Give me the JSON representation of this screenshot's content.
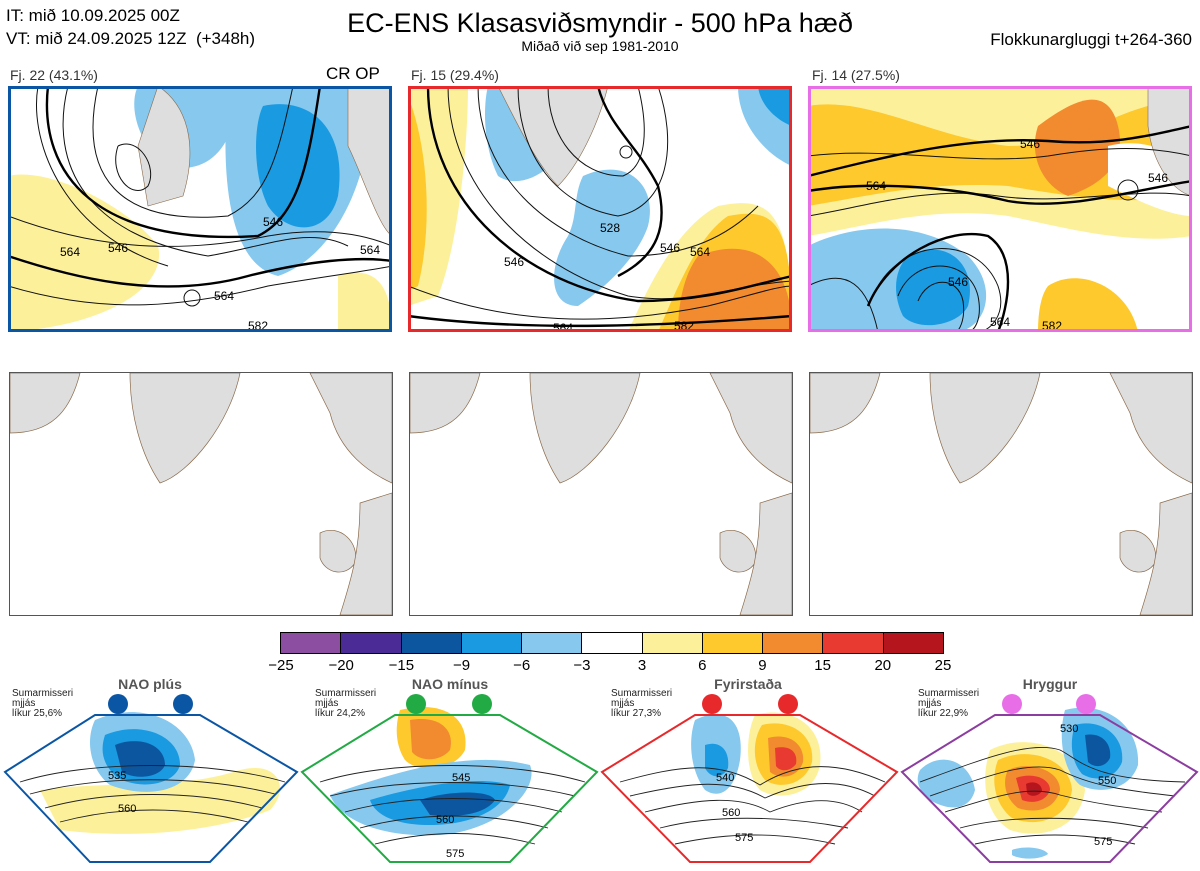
{
  "header": {
    "left_line1": "IT: mið 10.09.2025 00Z",
    "left_line2": "VT: mið 24.09.2025 12Z  (+348h)",
    "title": "EC-ENS Klasasviðsmyndir - 500 hPa hæð",
    "subtitle": "Miðað við sep 1981-2010",
    "right": "Flokkunargluggi t+264-360"
  },
  "panels": [
    {
      "label": "Fj. 22 (43.1%)",
      "extra": "CR OP",
      "border_color": "#0b56a4",
      "contour_labels": [
        "546",
        "546",
        "564",
        "564",
        "564",
        "582"
      ]
    },
    {
      "label": "Fj. 15 (29.4%)",
      "extra": "",
      "border_color": "#e8292b",
      "contour_labels": [
        "528",
        "546",
        "546",
        "564",
        "564",
        "582"
      ]
    },
    {
      "label": "Fj. 14 (27.5%)",
      "extra": "",
      "border_color": "#e86ee8",
      "contour_labels": [
        "546",
        "564",
        "546",
        "546",
        "564",
        "582"
      ]
    }
  ],
  "colorbar": {
    "ticks": [
      "−25",
      "−20",
      "−15",
      "−9",
      "−6",
      "−3",
      "3",
      "6",
      "9",
      "15",
      "20",
      "25"
    ],
    "colors": [
      "#8c4ea0",
      "#4b2b96",
      "#0c56a0",
      "#1a9ae0",
      "#86c8ee",
      "#ffffff",
      "#fdf09a",
      "#fdc92d",
      "#f28a30",
      "#e83a30",
      "#b5151c"
    ]
  },
  "regimes": [
    {
      "name": "NAO plús",
      "info": "Sumarmisseri\nmjjás\nlíkur 25,6%",
      "color": "#0b56a4",
      "contour_labels": [
        "535",
        "560"
      ]
    },
    {
      "name": "NAO mínus",
      "info": "Sumarmisseri\nmjjás\nlíkur 24,2%",
      "color": "#22aa44",
      "contour_labels": [
        "545",
        "560",
        "575"
      ]
    },
    {
      "name": "Fyrirstaða",
      "info": "Sumarmisseri\nmjjás\nlíkur 27,3%",
      "color": "#e8292b",
      "contour_labels": [
        "540",
        "560",
        "575"
      ]
    },
    {
      "name": "Hryggur",
      "info": "Sumarmisseri\nmjjás\nlíkur 22,9%",
      "color": "#e86ee8",
      "contour_labels": [
        "530",
        "550",
        "575"
      ]
    }
  ],
  "chart_data": {
    "type": "heatmap",
    "title": "EC-ENS Klasasviðsmyndir - 500 hPa hæð",
    "subtitle": "Miðað við sep 1981-2010",
    "colorbar_levels": [
      -25,
      -20,
      -15,
      -9,
      -6,
      -3,
      3,
      6,
      9,
      15,
      20,
      25
    ],
    "clusters": [
      {
        "label": "Fj. 22 (43.1%)",
        "members": 22,
        "percent": 43.1,
        "contours": [
          546,
          564,
          582
        ]
      },
      {
        "label": "Fj. 15 (29.4%)",
        "members": 15,
        "percent": 29.4,
        "contours": [
          528,
          546,
          564,
          582
        ]
      },
      {
        "label": "Fj. 14 (27.5%)",
        "members": 14,
        "percent": 27.5,
        "contours": [
          546,
          564,
          582
        ]
      }
    ],
    "regimes": [
      {
        "name": "NAO plús",
        "percent": 25.6,
        "contours": [
          535,
          560
        ]
      },
      {
        "name": "NAO mínus",
        "percent": 24.2,
        "contours": [
          545,
          560,
          575
        ]
      },
      {
        "name": "Fyrirstaða",
        "percent": 27.3,
        "contours": [
          540,
          560,
          575
        ]
      },
      {
        "name": "Hryggur",
        "percent": 22.9,
        "contours": [
          530,
          550,
          575
        ]
      }
    ]
  }
}
